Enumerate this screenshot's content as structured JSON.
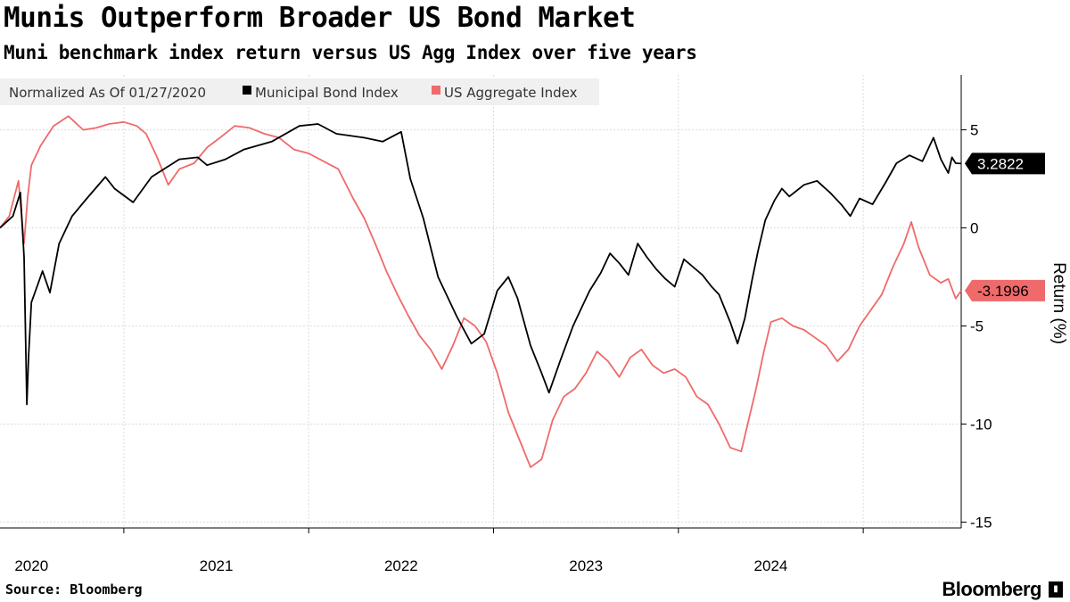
{
  "header": {
    "title": "Munis Outperform Broader US Bond Market",
    "subtitle": "Muni benchmark index return versus US Agg Index over five years"
  },
  "footer": {
    "source": "Source: Bloomberg",
    "brand": "Bloomberg",
    "brand_icon": "bloomberg-terminal-icon"
  },
  "chart_data": {
    "type": "line",
    "title": "Munis Outperform Broader US Bond Market",
    "subtitle": "Muni benchmark index return versus US Agg Index over five years",
    "legend_note": "Normalized As Of 01/27/2020",
    "legend_position": "top-left",
    "ylabel": "Return (%)",
    "xlabel": "",
    "ylim": [
      -15.3,
      7.8
    ],
    "yticks": [
      5,
      0,
      -5,
      -10,
      -15
    ],
    "ytick_labels": [
      "5",
      "0",
      "-5",
      "-10",
      "-15"
    ],
    "xlim": [
      2019.83,
      2025.03
    ],
    "xticks": [
      2020,
      2021,
      2022,
      2023,
      2024
    ],
    "xtick_labels": [
      "2020",
      "2021",
      "2022",
      "2023",
      "2024"
    ],
    "year_boundaries": [
      2020.5,
      2021.5,
      2022.5,
      2023.5,
      2024.5
    ],
    "grid": true,
    "series": [
      {
        "name": "Municipal Bond Index",
        "color": "#000000",
        "last_value_label": "3.2822",
        "points": [
          [
            2019.83,
            0.0
          ],
          [
            2019.9,
            0.6
          ],
          [
            2019.94,
            1.8
          ],
          [
            2019.96,
            -1.5
          ],
          [
            2019.975,
            -9.0
          ],
          [
            2019.985,
            -6.5
          ],
          [
            2020.0,
            -3.8
          ],
          [
            2020.03,
            -3.0
          ],
          [
            2020.06,
            -2.2
          ],
          [
            2020.1,
            -3.3
          ],
          [
            2020.15,
            -0.8
          ],
          [
            2020.22,
            0.6
          ],
          [
            2020.3,
            1.5
          ],
          [
            2020.4,
            2.6
          ],
          [
            2020.45,
            2.0
          ],
          [
            2020.55,
            1.3
          ],
          [
            2020.65,
            2.6
          ],
          [
            2020.8,
            3.5
          ],
          [
            2020.9,
            3.6
          ],
          [
            2020.95,
            3.2
          ],
          [
            2021.05,
            3.5
          ],
          [
            2021.15,
            4.0
          ],
          [
            2021.3,
            4.4
          ],
          [
            2021.45,
            5.2
          ],
          [
            2021.55,
            5.3
          ],
          [
            2021.65,
            4.8
          ],
          [
            2021.8,
            4.6
          ],
          [
            2021.9,
            4.4
          ],
          [
            2022.0,
            4.9
          ],
          [
            2022.05,
            2.5
          ],
          [
            2022.12,
            0.5
          ],
          [
            2022.2,
            -2.5
          ],
          [
            2022.3,
            -4.5
          ],
          [
            2022.38,
            -5.9
          ],
          [
            2022.45,
            -5.4
          ],
          [
            2022.52,
            -3.2
          ],
          [
            2022.58,
            -2.5
          ],
          [
            2022.63,
            -3.6
          ],
          [
            2022.7,
            -6.0
          ],
          [
            2022.76,
            -7.4
          ],
          [
            2022.8,
            -8.4
          ],
          [
            2022.86,
            -6.8
          ],
          [
            2022.93,
            -5.0
          ],
          [
            2022.97,
            -4.2
          ],
          [
            2023.02,
            -3.2
          ],
          [
            2023.08,
            -2.3
          ],
          [
            2023.13,
            -1.3
          ],
          [
            2023.18,
            -1.8
          ],
          [
            2023.23,
            -2.4
          ],
          [
            2023.28,
            -0.8
          ],
          [
            2023.33,
            -1.5
          ],
          [
            2023.38,
            -2.1
          ],
          [
            2023.43,
            -2.6
          ],
          [
            2023.48,
            -3.0
          ],
          [
            2023.53,
            -1.6
          ],
          [
            2023.58,
            -2.0
          ],
          [
            2023.63,
            -2.4
          ],
          [
            2023.68,
            -3.0
          ],
          [
            2023.72,
            -3.4
          ],
          [
            2023.78,
            -4.8
          ],
          [
            2023.82,
            -5.9
          ],
          [
            2023.86,
            -4.6
          ],
          [
            2023.9,
            -2.6
          ],
          [
            2023.93,
            -1.2
          ],
          [
            2023.97,
            0.4
          ],
          [
            2024.02,
            1.4
          ],
          [
            2024.06,
            2.0
          ],
          [
            2024.1,
            1.6
          ],
          [
            2024.18,
            2.2
          ],
          [
            2024.25,
            2.4
          ],
          [
            2024.32,
            1.8
          ],
          [
            2024.38,
            1.2
          ],
          [
            2024.43,
            0.6
          ],
          [
            2024.48,
            1.5
          ],
          [
            2024.55,
            1.2
          ],
          [
            2024.62,
            2.3
          ],
          [
            2024.68,
            3.3
          ],
          [
            2024.75,
            3.7
          ],
          [
            2024.82,
            3.4
          ],
          [
            2024.88,
            4.6
          ],
          [
            2024.92,
            3.5
          ],
          [
            2024.96,
            2.8
          ],
          [
            2024.98,
            3.6
          ],
          [
            2025.0,
            3.3
          ],
          [
            2025.03,
            3.2822
          ]
        ]
      },
      {
        "name": "US Aggregate Index",
        "color": "#ef6a6a",
        "last_value_label": "-3.1996",
        "points": [
          [
            2019.83,
            0.0
          ],
          [
            2019.88,
            0.6
          ],
          [
            2019.93,
            2.4
          ],
          [
            2019.96,
            -0.8
          ],
          [
            2019.98,
            1.6
          ],
          [
            2020.0,
            3.2
          ],
          [
            2020.05,
            4.2
          ],
          [
            2020.12,
            5.2
          ],
          [
            2020.2,
            5.7
          ],
          [
            2020.28,
            5.0
          ],
          [
            2020.35,
            5.1
          ],
          [
            2020.42,
            5.3
          ],
          [
            2020.5,
            5.4
          ],
          [
            2020.57,
            5.2
          ],
          [
            2020.62,
            4.8
          ],
          [
            2020.68,
            3.6
          ],
          [
            2020.74,
            2.2
          ],
          [
            2020.8,
            3.0
          ],
          [
            2020.88,
            3.3
          ],
          [
            2020.95,
            4.1
          ],
          [
            2021.02,
            4.6
          ],
          [
            2021.1,
            5.2
          ],
          [
            2021.18,
            5.1
          ],
          [
            2021.26,
            4.8
          ],
          [
            2021.34,
            4.6
          ],
          [
            2021.42,
            4.0
          ],
          [
            2021.5,
            3.8
          ],
          [
            2021.58,
            3.4
          ],
          [
            2021.66,
            3.0
          ],
          [
            2021.74,
            1.5
          ],
          [
            2021.8,
            0.5
          ],
          [
            2021.86,
            -0.8
          ],
          [
            2021.92,
            -2.2
          ],
          [
            2021.98,
            -3.4
          ],
          [
            2022.04,
            -4.5
          ],
          [
            2022.1,
            -5.5
          ],
          [
            2022.16,
            -6.2
          ],
          [
            2022.22,
            -7.2
          ],
          [
            2022.28,
            -6.0
          ],
          [
            2022.34,
            -4.6
          ],
          [
            2022.4,
            -5.0
          ],
          [
            2022.46,
            -5.8
          ],
          [
            2022.52,
            -7.4
          ],
          [
            2022.58,
            -9.4
          ],
          [
            2022.64,
            -10.8
          ],
          [
            2022.7,
            -12.2
          ],
          [
            2022.76,
            -11.8
          ],
          [
            2022.82,
            -9.8
          ],
          [
            2022.88,
            -8.6
          ],
          [
            2022.94,
            -8.2
          ],
          [
            2023.0,
            -7.4
          ],
          [
            2023.06,
            -6.3
          ],
          [
            2023.12,
            -6.8
          ],
          [
            2023.18,
            -7.6
          ],
          [
            2023.24,
            -6.6
          ],
          [
            2023.3,
            -6.2
          ],
          [
            2023.36,
            -7.0
          ],
          [
            2023.42,
            -7.4
          ],
          [
            2023.48,
            -7.2
          ],
          [
            2023.54,
            -7.6
          ],
          [
            2023.6,
            -8.6
          ],
          [
            2023.66,
            -9.0
          ],
          [
            2023.72,
            -10.0
          ],
          [
            2023.78,
            -11.2
          ],
          [
            2023.84,
            -11.4
          ],
          [
            2023.88,
            -9.8
          ],
          [
            2023.92,
            -8.2
          ],
          [
            2023.96,
            -6.4
          ],
          [
            2024.0,
            -4.8
          ],
          [
            2024.06,
            -4.6
          ],
          [
            2024.12,
            -5.0
          ],
          [
            2024.18,
            -5.2
          ],
          [
            2024.24,
            -5.6
          ],
          [
            2024.3,
            -6.0
          ],
          [
            2024.36,
            -6.8
          ],
          [
            2024.42,
            -6.2
          ],
          [
            2024.48,
            -5.0
          ],
          [
            2024.54,
            -4.2
          ],
          [
            2024.6,
            -3.4
          ],
          [
            2024.66,
            -2.0
          ],
          [
            2024.72,
            -0.8
          ],
          [
            2024.76,
            0.3
          ],
          [
            2024.8,
            -1.0
          ],
          [
            2024.86,
            -2.4
          ],
          [
            2024.92,
            -2.8
          ],
          [
            2024.96,
            -2.6
          ],
          [
            2025.0,
            -3.6
          ],
          [
            2025.03,
            -3.1996
          ]
        ]
      }
    ]
  }
}
